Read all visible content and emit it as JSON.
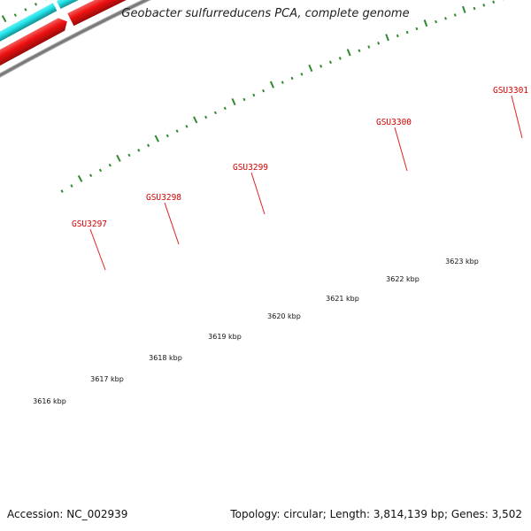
{
  "title": "Geobacter sulfurreducens PCA, complete genome",
  "footer": {
    "accession": "Accession: NC_002939",
    "summary": "Topology: circular; Length: 3,814,139 bp; Genes: 3,502"
  },
  "colors": {
    "backbone": "#7a7a7a",
    "tick": "#2f8a2f",
    "label": "#d40000",
    "leader": "#dd2222",
    "cds_red": "#ee1111",
    "gene_cyan": "#22e6ec",
    "gene_orange": "#f28a0e",
    "gene_purple": "#6e56c9",
    "gene_blue": "#1aa6ec"
  },
  "kbp_labels": [
    "3616 kbp",
    "3617 kbp",
    "3618 kbp",
    "3619 kbp",
    "3620 kbp",
    "3621 kbp",
    "3622 kbp",
    "3623 kbp"
  ],
  "genes": [
    {
      "id": "GSU3297",
      "label": "GSU3297",
      "color": "gene_cyan"
    },
    {
      "id": "GSU3298",
      "label": "GSU3298",
      "color": "gene_orange"
    },
    {
      "id": "GSU3299",
      "label": "GSU3299",
      "color": "gene_purple"
    },
    {
      "id": "GSU3300",
      "label": "GSU3300",
      "color": "gene_purple"
    },
    {
      "id": "GSU3301",
      "label": "GSU3301",
      "color": "gene_blue"
    }
  ]
}
